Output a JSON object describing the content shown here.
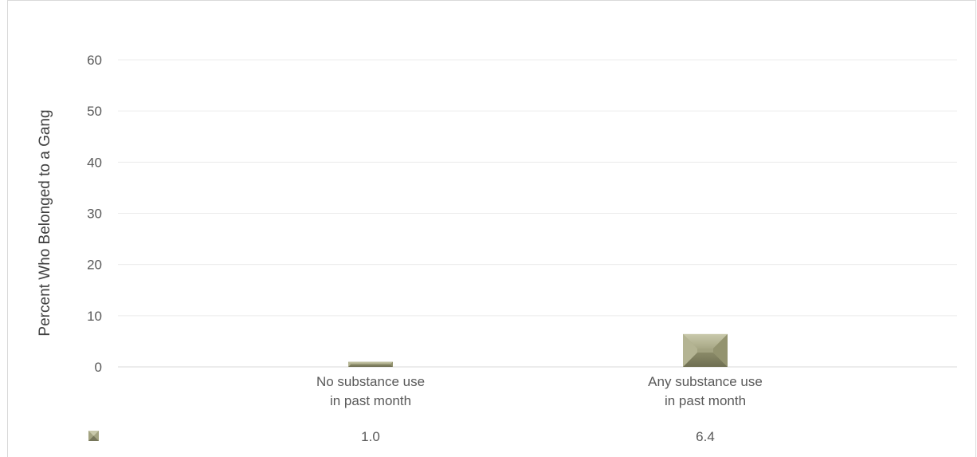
{
  "chart_data": {
    "type": "bar",
    "title": "",
    "xlabel": "",
    "ylabel": "Percent Who Belonged to a Gang",
    "categories": [
      [
        "No substance use",
        "in past month"
      ],
      [
        "Any substance use",
        "in past month"
      ]
    ],
    "series": [
      {
        "values": [
          1.0,
          6.4
        ],
        "value_labels": [
          "1.0",
          "6.4"
        ],
        "color": "#a3a381"
      }
    ],
    "ylim": [
      0,
      60
    ],
    "yticks": [
      0,
      10,
      20,
      30,
      40,
      50,
      60
    ],
    "grid": true,
    "data_table": true
  }
}
